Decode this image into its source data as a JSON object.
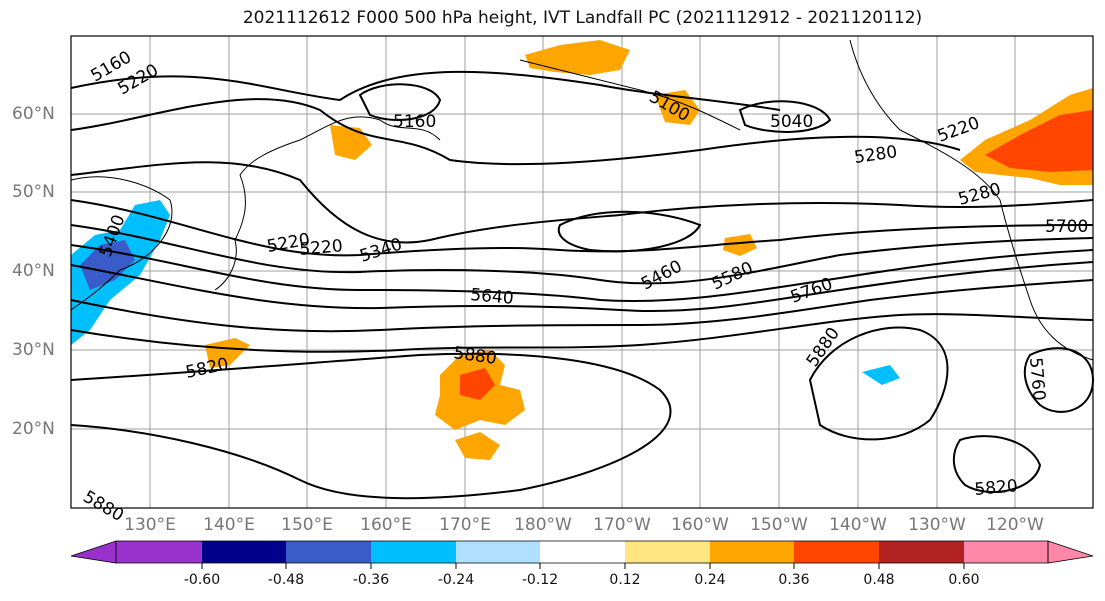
{
  "title": "2021112612 F000 500 hPa height, IVT Landfall PC (2021112912 - 2021120112)",
  "lat_labels": [
    "60°N",
    "50°N",
    "40°N",
    "30°N",
    "20°N"
  ],
  "lon_labels": [
    "130°E",
    "140°E",
    "150°E",
    "160°E",
    "170°E",
    "180°W",
    "170°W",
    "160°W",
    "150°W",
    "140°W",
    "130°W",
    "120°W"
  ],
  "contour_labels": [
    "5160",
    "5220",
    "5160",
    "5100",
    "5040",
    "5220",
    "5280",
    "5220",
    "5280",
    "5400",
    "5220",
    "5340",
    "5460",
    "5580",
    "5700",
    "5640",
    "5760",
    "5880",
    "5820",
    "5880",
    "5760",
    "5820",
    "5880"
  ],
  "colorbar": {
    "colors": [
      "#9932cc",
      "#00008b",
      "#3a5cc9",
      "#00bfff",
      "#b0e0ff",
      "#ffffff",
      "#ffe680",
      "#ffa500",
      "#ff4500",
      "#b22222",
      "#ff88aa"
    ],
    "tick_labels": [
      "-0.60",
      "-0.48",
      "-0.36",
      "-0.24",
      "-0.12",
      "0.12",
      "0.24",
      "0.36",
      "0.48",
      "0.60"
    ]
  }
}
